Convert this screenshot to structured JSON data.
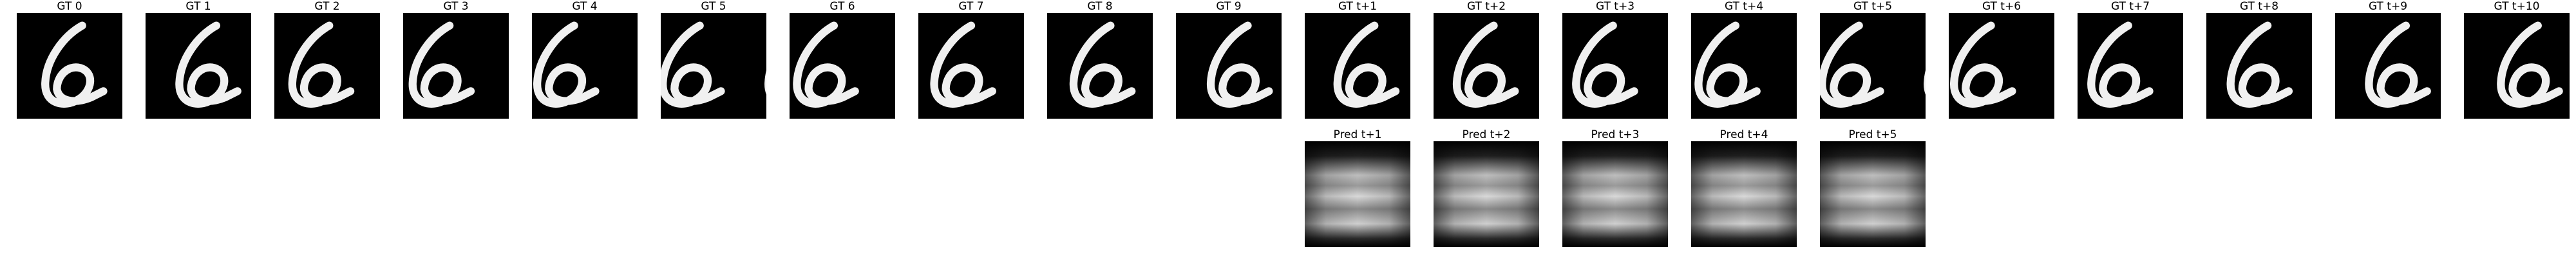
{
  "colors": {
    "background": "#ffffff",
    "frame_background": "#000000",
    "digit": "#f0f0f0"
  },
  "ground_truth": [
    {
      "title": "GT 0",
      "offset": 0
    },
    {
      "title": "GT 1",
      "offset": 0.05
    },
    {
      "title": "GT 2",
      "offset": -0.1
    },
    {
      "title": "GT 3",
      "offset": -0.18
    },
    {
      "title": "GT 4",
      "offset": -0.22
    },
    {
      "title": "GT 5",
      "offset": -0.25
    },
    {
      "title": "GT 6",
      "offset": -0.2
    },
    {
      "title": "GT 7",
      "offset": -0.12
    },
    {
      "title": "GT 8",
      "offset": -0.02
    },
    {
      "title": "GT 9",
      "offset": 0.06
    },
    {
      "title": "GT t+1",
      "offset": 0.04
    },
    {
      "title": "GT t+2",
      "offset": -0.05
    },
    {
      "title": "GT t+3",
      "offset": -0.14
    },
    {
      "title": "GT t+4",
      "offset": -0.2
    },
    {
      "title": "GT t+5",
      "offset": -0.25
    },
    {
      "title": "GT t+6",
      "offset": -0.22
    },
    {
      "title": "GT t+7",
      "offset": -0.14
    },
    {
      "title": "GT t+8",
      "offset": -0.04
    },
    {
      "title": "GT t+9",
      "offset": 0.05
    },
    {
      "title": "GT t+10",
      "offset": 0.08
    }
  ],
  "predictions": [
    {
      "title": "Pred t+1"
    },
    {
      "title": "Pred t+2"
    },
    {
      "title": "Pred t+3"
    },
    {
      "title": "Pred t+4"
    },
    {
      "title": "Pred t+5"
    }
  ]
}
